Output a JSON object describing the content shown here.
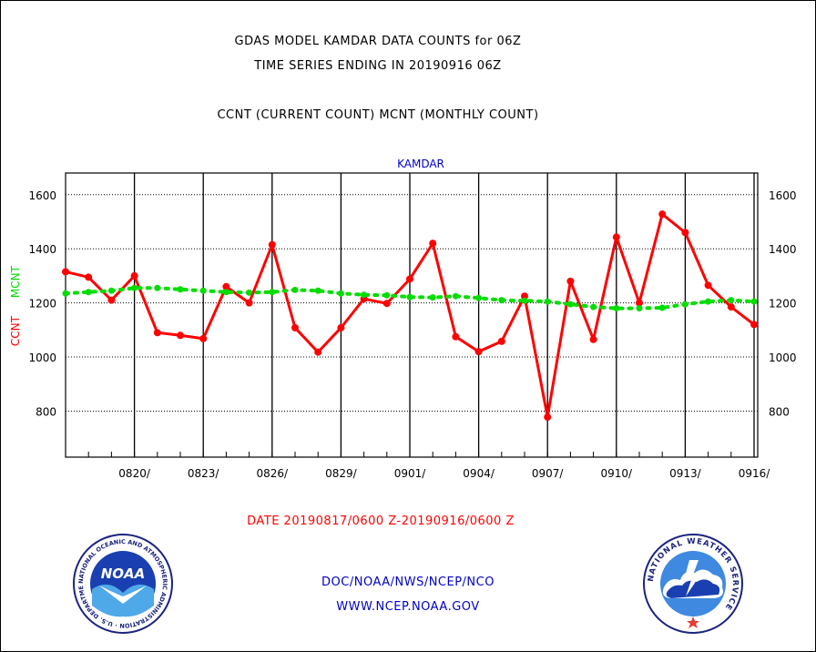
{
  "header": {
    "title_line1": "GDAS MODEL KAMDAR DATA COUNTS for 06Z",
    "title_line2": "TIME SERIES ENDING IN 20190916 06Z",
    "subtitle": "CCNT (CURRENT COUNT) MCNT (MONTHLY COUNT)"
  },
  "footer": {
    "org_line": "DOC/NOAA/NWS/NCEP/NCO",
    "url_line": "WWW.NCEP.NOAA.GOV"
  },
  "logos": {
    "noaa_text": "NOAA",
    "noaa_ring": "NATIONAL OCEANIC AND ATMOSPHERIC ADMINISTRATION · U.S. DEPARTMENT OF COMMERCE",
    "nws_ring": "NATIONAL WEATHER SERVICE"
  },
  "colors": {
    "ccnt": "#ff0000",
    "mcnt": "#00dd00",
    "plot_title": "#0000cc",
    "footer_text": "#0000cc",
    "date_text": "#ff0000"
  },
  "chart_data": {
    "type": "line",
    "plot_title": "KAMDAR",
    "ylabel_ccnt": "CCNT",
    "ylabel_mcnt": "MCNT",
    "xlabel": "DATE 20190817/0600 Z-20190916/0600 Z",
    "ylim": [
      630,
      1680
    ],
    "yticks": [
      800,
      1000,
      1200,
      1400,
      1600
    ],
    "xlim": [
      0,
      30
    ],
    "xticks": [
      {
        "x": 3,
        "label": "0820/"
      },
      {
        "x": 6,
        "label": "0823/"
      },
      {
        "x": 9,
        "label": "0826/"
      },
      {
        "x": 12,
        "label": "0829/"
      },
      {
        "x": 15,
        "label": "0901/"
      },
      {
        "x": 18,
        "label": "0904/"
      },
      {
        "x": 21,
        "label": "0907/"
      },
      {
        "x": 24,
        "label": "0910/"
      },
      {
        "x": 27,
        "label": "0913/"
      },
      {
        "x": 30,
        "label": "0916/"
      }
    ],
    "grid": true,
    "series": [
      {
        "name": "CCNT",
        "style": "solid",
        "values": [
          1315,
          1295,
          1210,
          1300,
          1090,
          1080,
          1068,
          1260,
          1200,
          1415,
          1108,
          1018,
          1108,
          1215,
          1198,
          1288,
          1420,
          1075,
          1020,
          1058,
          1225,
          778,
          1280,
          1065,
          1443,
          1200,
          1528,
          1460,
          1265,
          1185,
          1120
        ]
      },
      {
        "name": "MCNT",
        "style": "dashed",
        "values": [
          1235,
          1240,
          1245,
          1255,
          1255,
          1250,
          1245,
          1240,
          1238,
          1240,
          1248,
          1245,
          1235,
          1230,
          1228,
          1222,
          1220,
          1225,
          1218,
          1210,
          1208,
          1205,
          1195,
          1185,
          1180,
          1180,
          1182,
          1195,
          1205,
          1210,
          1205
        ]
      }
    ]
  }
}
